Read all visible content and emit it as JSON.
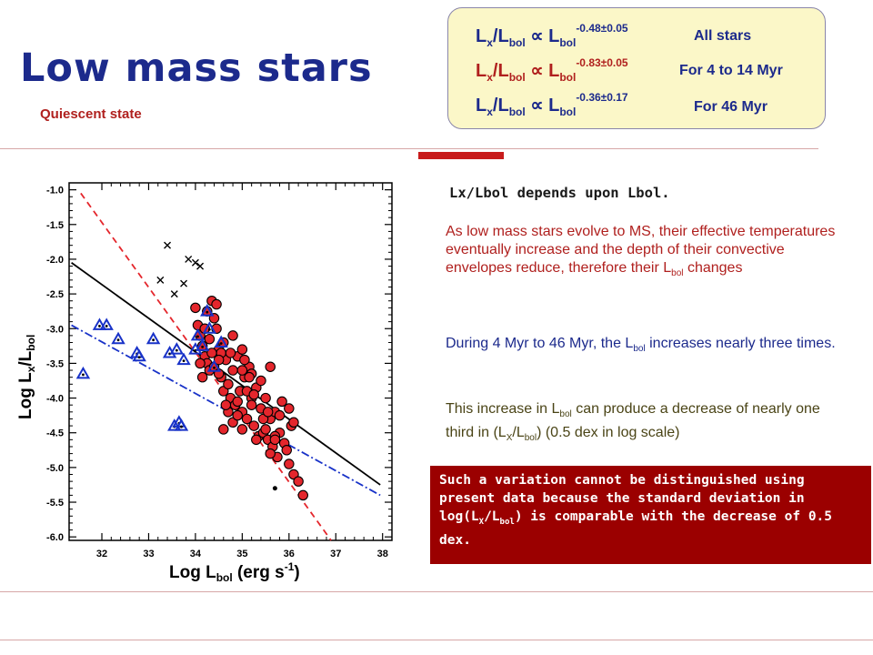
{
  "slide": {
    "title": "Low mass stars",
    "subtitle": "Quiescent state"
  },
  "relations": [
    {
      "lhs_a": "L",
      "sub_a": "x",
      "slash": "/L",
      "sub_b": "bol",
      "prop": " ∝ L",
      "sub_c": "bol",
      "exp": "-0.48±0.05",
      "label": "All stars"
    },
    {
      "lhs_a": "L",
      "sub_a": "x",
      "slash": "/L",
      "sub_b": "bol",
      "prop": " ∝ L",
      "sub_c": "bol",
      "exp": "-0.83±0.05",
      "label": "For 4 to 14 Myr"
    },
    {
      "lhs_a": "L",
      "sub_a": "x",
      "slash": "/L",
      "sub_b": "bol",
      "prop": " ∝ L",
      "sub_c": "bol",
      "exp": "-0.36±0.17",
      "label": "For 46 Myr"
    }
  ],
  "text": {
    "heading": "Lx/Lbol depends upon  Lbol.",
    "p1_a": "As low mass stars evolve to MS, their effective temperatures eventually increase and the depth of their convective envelopes reduce, therefore their L",
    "p1_sub": "bol",
    "p1_b": " changes",
    "p2_a": "During 4 Myr to 46 Myr, the L",
    "p2_sub": "bol",
    "p2_b": " increases nearly three times.",
    "p3_a": "This increase in L",
    "p3_sub1": "bol",
    "p3_b": " can produce a decrease of nearly one third in (L",
    "p3_sub2": "X",
    "p3_c": "/L",
    "p3_sub3": "bol",
    "p3_d": ") (0.5 dex in log scale)",
    "box_a": "Such a variation cannot be distinguished using present data because the standard deviation in log(L",
    "box_sub1": "X",
    "box_b": "/L",
    "box_sub2": "bol",
    "box_c": ") is comparable with the decrease of 0.5 dex."
  },
  "chart_data": {
    "type": "scatter",
    "xlabel_main": "Log  L",
    "xlabel_sub": "bol",
    "xlabel_unit": "  (erg s",
    "xlabel_sup": "-1",
    "xlabel_end": ")",
    "ylabel_main": "Log  L",
    "ylabel_sub1": "x",
    "ylabel_mid": "/L",
    "ylabel_sub2": "bol",
    "xlim": [
      31.3,
      38.2
    ],
    "ylim": [
      -6.05,
      -0.9
    ],
    "xticks": [
      "32",
      "33",
      "34",
      "35",
      "36",
      "37",
      "38"
    ],
    "yticks": [
      "-1.0",
      "-1.5",
      "-2.0",
      "-2.5",
      "-3.0",
      "-3.5",
      "-4.0",
      "-4.5",
      "-5.0",
      "-5.5",
      "-6.0"
    ],
    "colors": {
      "red": "#e4262c",
      "blue": "#1832c8",
      "black": "#000000",
      "frame": "#000000"
    },
    "lines": [
      {
        "style": "solid",
        "color": "black",
        "points": [
          [
            31.35,
            -2.05
          ],
          [
            37.95,
            -5.25
          ]
        ]
      },
      {
        "style": "dashed",
        "color": "red",
        "points": [
          [
            31.55,
            -1.05
          ],
          [
            36.9,
            -6.05
          ]
        ]
      },
      {
        "style": "dashdot",
        "color": "blue",
        "points": [
          [
            31.35,
            -2.95
          ],
          [
            37.95,
            -5.4
          ]
        ]
      }
    ],
    "series": [
      {
        "marker": "circle",
        "color": "red",
        "points": [
          [
            34.0,
            -2.7
          ],
          [
            34.05,
            -2.95
          ],
          [
            34.1,
            -3.1
          ],
          [
            34.15,
            -3.25
          ],
          [
            34.2,
            -3.4
          ],
          [
            34.25,
            -3.5
          ],
          [
            34.3,
            -3.6
          ],
          [
            34.35,
            -2.6
          ],
          [
            34.4,
            -2.85
          ],
          [
            34.45,
            -3.0
          ],
          [
            34.5,
            -3.3
          ],
          [
            34.55,
            -3.7
          ],
          [
            34.6,
            -3.9
          ],
          [
            34.65,
            -3.45
          ],
          [
            34.7,
            -3.8
          ],
          [
            34.75,
            -4.0
          ],
          [
            34.8,
            -3.6
          ],
          [
            34.85,
            -4.1
          ],
          [
            34.9,
            -3.4
          ],
          [
            34.95,
            -3.9
          ],
          [
            35.0,
            -4.2
          ],
          [
            35.05,
            -3.7
          ],
          [
            35.1,
            -4.3
          ],
          [
            35.15,
            -3.55
          ],
          [
            35.2,
            -4.0
          ],
          [
            35.25,
            -4.4
          ],
          [
            35.3,
            -3.85
          ],
          [
            35.35,
            -4.55
          ],
          [
            35.4,
            -4.15
          ],
          [
            35.45,
            -4.5
          ],
          [
            35.5,
            -4.0
          ],
          [
            35.55,
            -4.6
          ],
          [
            35.6,
            -4.3
          ],
          [
            35.65,
            -4.7
          ],
          [
            35.7,
            -4.2
          ],
          [
            35.75,
            -4.85
          ],
          [
            35.8,
            -4.5
          ],
          [
            35.9,
            -4.65
          ],
          [
            36.0,
            -4.95
          ],
          [
            36.05,
            -4.4
          ],
          [
            36.1,
            -5.1
          ],
          [
            36.2,
            -5.2
          ],
          [
            36.3,
            -5.4
          ],
          [
            34.1,
            -3.5
          ],
          [
            34.2,
            -3.0
          ],
          [
            34.3,
            -3.15
          ],
          [
            34.4,
            -3.55
          ],
          [
            34.5,
            -3.65
          ],
          [
            34.6,
            -3.2
          ],
          [
            34.7,
            -4.2
          ],
          [
            34.8,
            -4.35
          ],
          [
            34.9,
            -4.25
          ],
          [
            35.0,
            -3.6
          ],
          [
            35.1,
            -3.9
          ],
          [
            35.2,
            -3.65
          ],
          [
            35.3,
            -4.6
          ],
          [
            35.5,
            -4.45
          ],
          [
            35.6,
            -4.8
          ],
          [
            35.7,
            -4.55
          ],
          [
            35.8,
            -4.25
          ],
          [
            35.0,
            -3.3
          ],
          [
            34.25,
            -2.75
          ],
          [
            34.45,
            -2.65
          ],
          [
            34.55,
            -3.35
          ],
          [
            34.75,
            -3.35
          ],
          [
            35.15,
            -3.7
          ],
          [
            35.4,
            -3.75
          ],
          [
            35.45,
            -4.3
          ],
          [
            35.7,
            -4.6
          ],
          [
            35.95,
            -4.75
          ],
          [
            36.0,
            -4.15
          ],
          [
            36.1,
            -4.35
          ],
          [
            34.9,
            -4.05
          ],
          [
            34.65,
            -4.1
          ],
          [
            35.2,
            -4.1
          ],
          [
            35.25,
            -3.95
          ],
          [
            35.6,
            -3.55
          ],
          [
            35.85,
            -4.05
          ],
          [
            34.15,
            -3.7
          ],
          [
            34.35,
            -3.35
          ],
          [
            34.5,
            -3.45
          ],
          [
            34.8,
            -3.1
          ],
          [
            35.05,
            -3.45
          ],
          [
            34.6,
            -4.45
          ],
          [
            35.0,
            -4.45
          ],
          [
            35.55,
            -4.2
          ]
        ]
      },
      {
        "marker": "triangle",
        "color": "blue",
        "points": [
          [
            31.6,
            -3.65
          ],
          [
            31.95,
            -2.95
          ],
          [
            32.1,
            -2.95
          ],
          [
            32.35,
            -3.15
          ],
          [
            32.75,
            -3.35
          ],
          [
            32.8,
            -3.4
          ],
          [
            33.1,
            -3.15
          ],
          [
            33.45,
            -3.35
          ],
          [
            33.6,
            -3.3
          ],
          [
            33.55,
            -4.4
          ],
          [
            33.65,
            -4.35
          ],
          [
            33.7,
            -4.4
          ],
          [
            33.75,
            -3.45
          ],
          [
            34.0,
            -3.3
          ],
          [
            34.05,
            -3.1
          ],
          [
            34.15,
            -3.25
          ],
          [
            34.25,
            -2.75
          ],
          [
            34.3,
            -3.0
          ],
          [
            34.4,
            -3.55
          ],
          [
            34.55,
            -3.2
          ]
        ]
      },
      {
        "marker": "cross",
        "color": "black",
        "points": [
          [
            33.4,
            -1.8
          ],
          [
            33.25,
            -2.3
          ],
          [
            33.55,
            -2.5
          ],
          [
            33.75,
            -2.35
          ],
          [
            33.85,
            -2.0
          ],
          [
            34.0,
            -2.05
          ],
          [
            34.1,
            -2.1
          ]
        ]
      },
      {
        "marker": "dot",
        "color": "black",
        "points": [
          [
            35.7,
            -5.3
          ]
        ]
      }
    ]
  }
}
